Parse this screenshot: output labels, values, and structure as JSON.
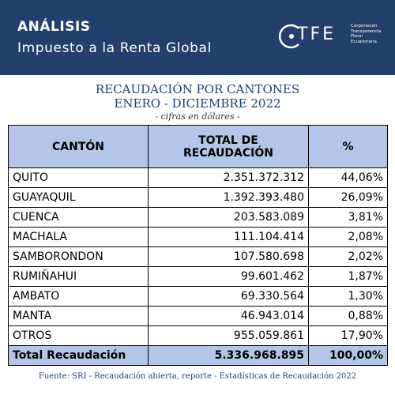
{
  "header": {
    "title": "ANÁLISIS",
    "subtitle": "Impuesto a la Renta Global",
    "logo": "TFE",
    "logo_caption": [
      "Corporación",
      "Transparencia",
      "Fiscal",
      "Ecuatoriana"
    ]
  },
  "titles": [
    "RECAUDACIÓN POR CANTONES",
    "ENERO - DICIEMBRE 2022",
    "- cifras en dólares -"
  ],
  "table": {
    "columns": [
      "CANTÓN",
      "TOTAL DE RECAUDACIÓN",
      "%"
    ],
    "rows": [
      [
        "QUITO",
        "2.351.372.312",
        "44,06%"
      ],
      [
        "GUAYAQUIL",
        "1.392.393.480",
        "26,09%"
      ],
      [
        "CUENCA",
        "203.583.089",
        "3,81%"
      ],
      [
        "MACHALA",
        "111.104.414",
        "2,08%"
      ],
      [
        "SAMBORONDON",
        "107.580.698",
        "2,02%"
      ],
      [
        "RUMIÑAHUI",
        "99.601.462",
        "1,87%"
      ],
      [
        "AMBATO",
        "69.330.564",
        "1,30%"
      ],
      [
        "MANTA",
        "46.943.014",
        "0,88%"
      ],
      [
        "OTROS",
        "955.059.861",
        "17,90%"
      ]
    ],
    "total": [
      "Total Recaudación",
      "5.336.968.895",
      "100,00%"
    ]
  },
  "footer": "Fuente: SRI - Recaudación abierta, reporte - Estadísticas de Recaudación 2022"
}
